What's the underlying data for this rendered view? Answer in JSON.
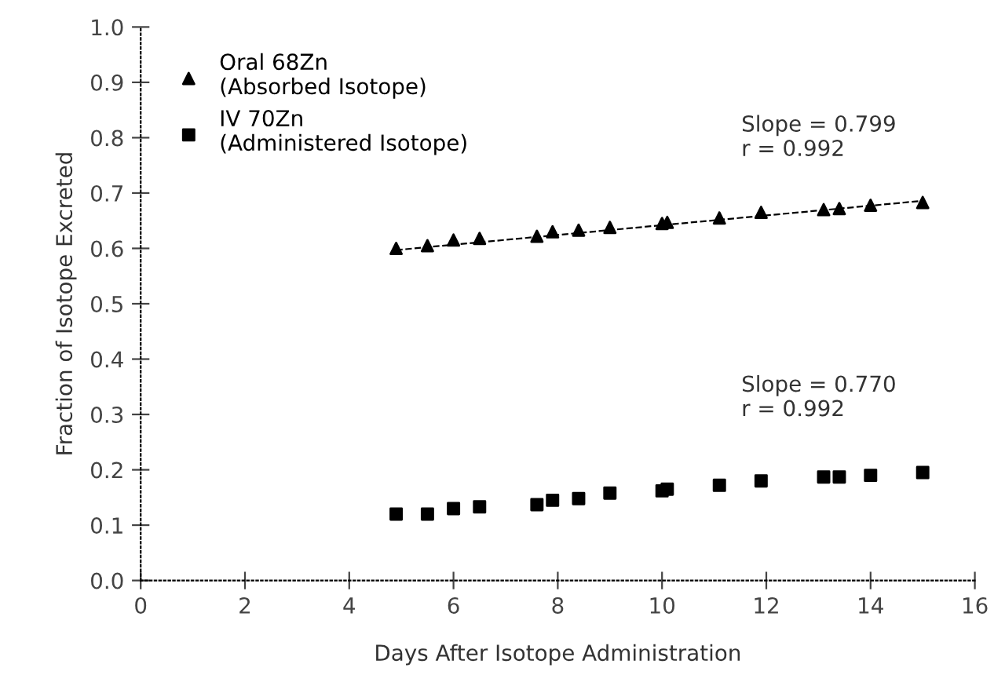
{
  "chart_data": {
    "type": "scatter",
    "xlabel": "Days After Isotope Administration",
    "ylabel": "Fraction of Isotope Excreted",
    "xlim": [
      0,
      16
    ],
    "xticks": [
      0,
      2,
      4,
      6,
      8,
      10,
      12,
      14,
      16
    ],
    "ylim": [
      0,
      1.0
    ],
    "yticks": [
      {
        "value": 0,
        "label": "0.0"
      },
      0.1,
      0.2,
      0.3,
      0.4,
      0.5,
      0.6,
      0.7,
      0.8,
      0.9,
      {
        "value": 1,
        "label": "1.0"
      }
    ],
    "grid": false,
    "legend": "top left",
    "series": [
      {
        "name": "Oral 68Zn\n(Absorbed Isotope)",
        "color": "#000000",
        "marker": "triangle",
        "x": [
          4.9,
          5.5,
          6.0,
          6.5,
          7.6,
          7.9,
          8.4,
          9.0,
          10.0,
          10.1,
          11.1,
          11.9,
          13.1,
          13.4,
          14.0,
          15.0
        ],
        "values": [
          0.6,
          0.605,
          0.615,
          0.618,
          0.622,
          0.63,
          0.633,
          0.638,
          0.645,
          0.647,
          0.655,
          0.665,
          0.67,
          0.672,
          0.678,
          0.683
        ]
      },
      {
        "name": "IV 70Zn\n(Administered Isotope)",
        "color": "#000000",
        "marker": "square",
        "x": [
          4.9,
          5.5,
          6.0,
          6.5,
          7.6,
          7.9,
          8.4,
          9.0,
          10.0,
          10.1,
          11.1,
          11.9,
          13.1,
          13.4,
          14.0,
          15.0
        ],
        "values": [
          0.12,
          0.12,
          0.13,
          0.133,
          0.137,
          0.145,
          0.148,
          0.158,
          0.162,
          0.165,
          0.172,
          0.18,
          0.187,
          0.187,
          0.19,
          0.195
        ]
      },
      {
        "type": "line",
        "line_style": "dashed",
        "color": "#000000",
        "x": [
          4.9,
          15.0
        ],
        "values": [
          0.597,
          0.686
        ]
      }
    ],
    "annotations": [
      "Slope = 0.799\nr = 0.992",
      "Slope = 0.770\nr = 0.992"
    ]
  }
}
